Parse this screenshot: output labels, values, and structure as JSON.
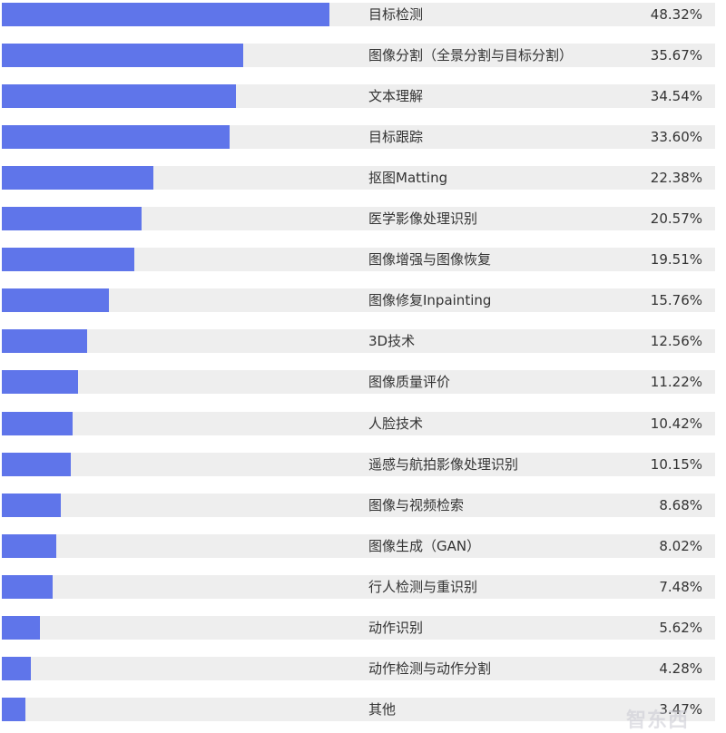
{
  "chart_data": {
    "type": "bar",
    "orientation": "horizontal",
    "title": "",
    "xlabel": "",
    "ylabel": "",
    "xlim": [
      0,
      100
    ],
    "grid": false,
    "legend": null,
    "bar_color": "#5f75ea",
    "track_color": "#eeeeee",
    "categories": [
      "目标检测",
      "图像分割（全景分割与目标分割）",
      "文本理解",
      "目标跟踪",
      "抠图Matting",
      "医学影像处理识别",
      "图像增强与图像恢复",
      "图像修复Inpainting",
      "3D技术",
      "图像质量评价",
      "人脸技术",
      "遥感与航拍影像处理识别",
      "图像与视频检索",
      "图像生成（GAN）",
      "行人检测与重识别",
      "动作识别",
      "动作检测与动作分割",
      "其他"
    ],
    "values": [
      48.32,
      35.67,
      34.54,
      33.6,
      22.38,
      20.57,
      19.51,
      15.76,
      12.56,
      11.22,
      10.42,
      10.15,
      8.68,
      8.02,
      7.48,
      5.62,
      4.28,
      3.47
    ],
    "value_labels": [
      "48.32%",
      "35.67%",
      "34.54%",
      "33.60%",
      "22.38%",
      "20.57%",
      "19.51%",
      "15.76%",
      "12.56%",
      "11.22%",
      "10.42%",
      "10.15%",
      "8.68%",
      "8.02%",
      "7.48%",
      "5.62%",
      "4.28%",
      "3.47%"
    ]
  },
  "watermark": "智东西"
}
